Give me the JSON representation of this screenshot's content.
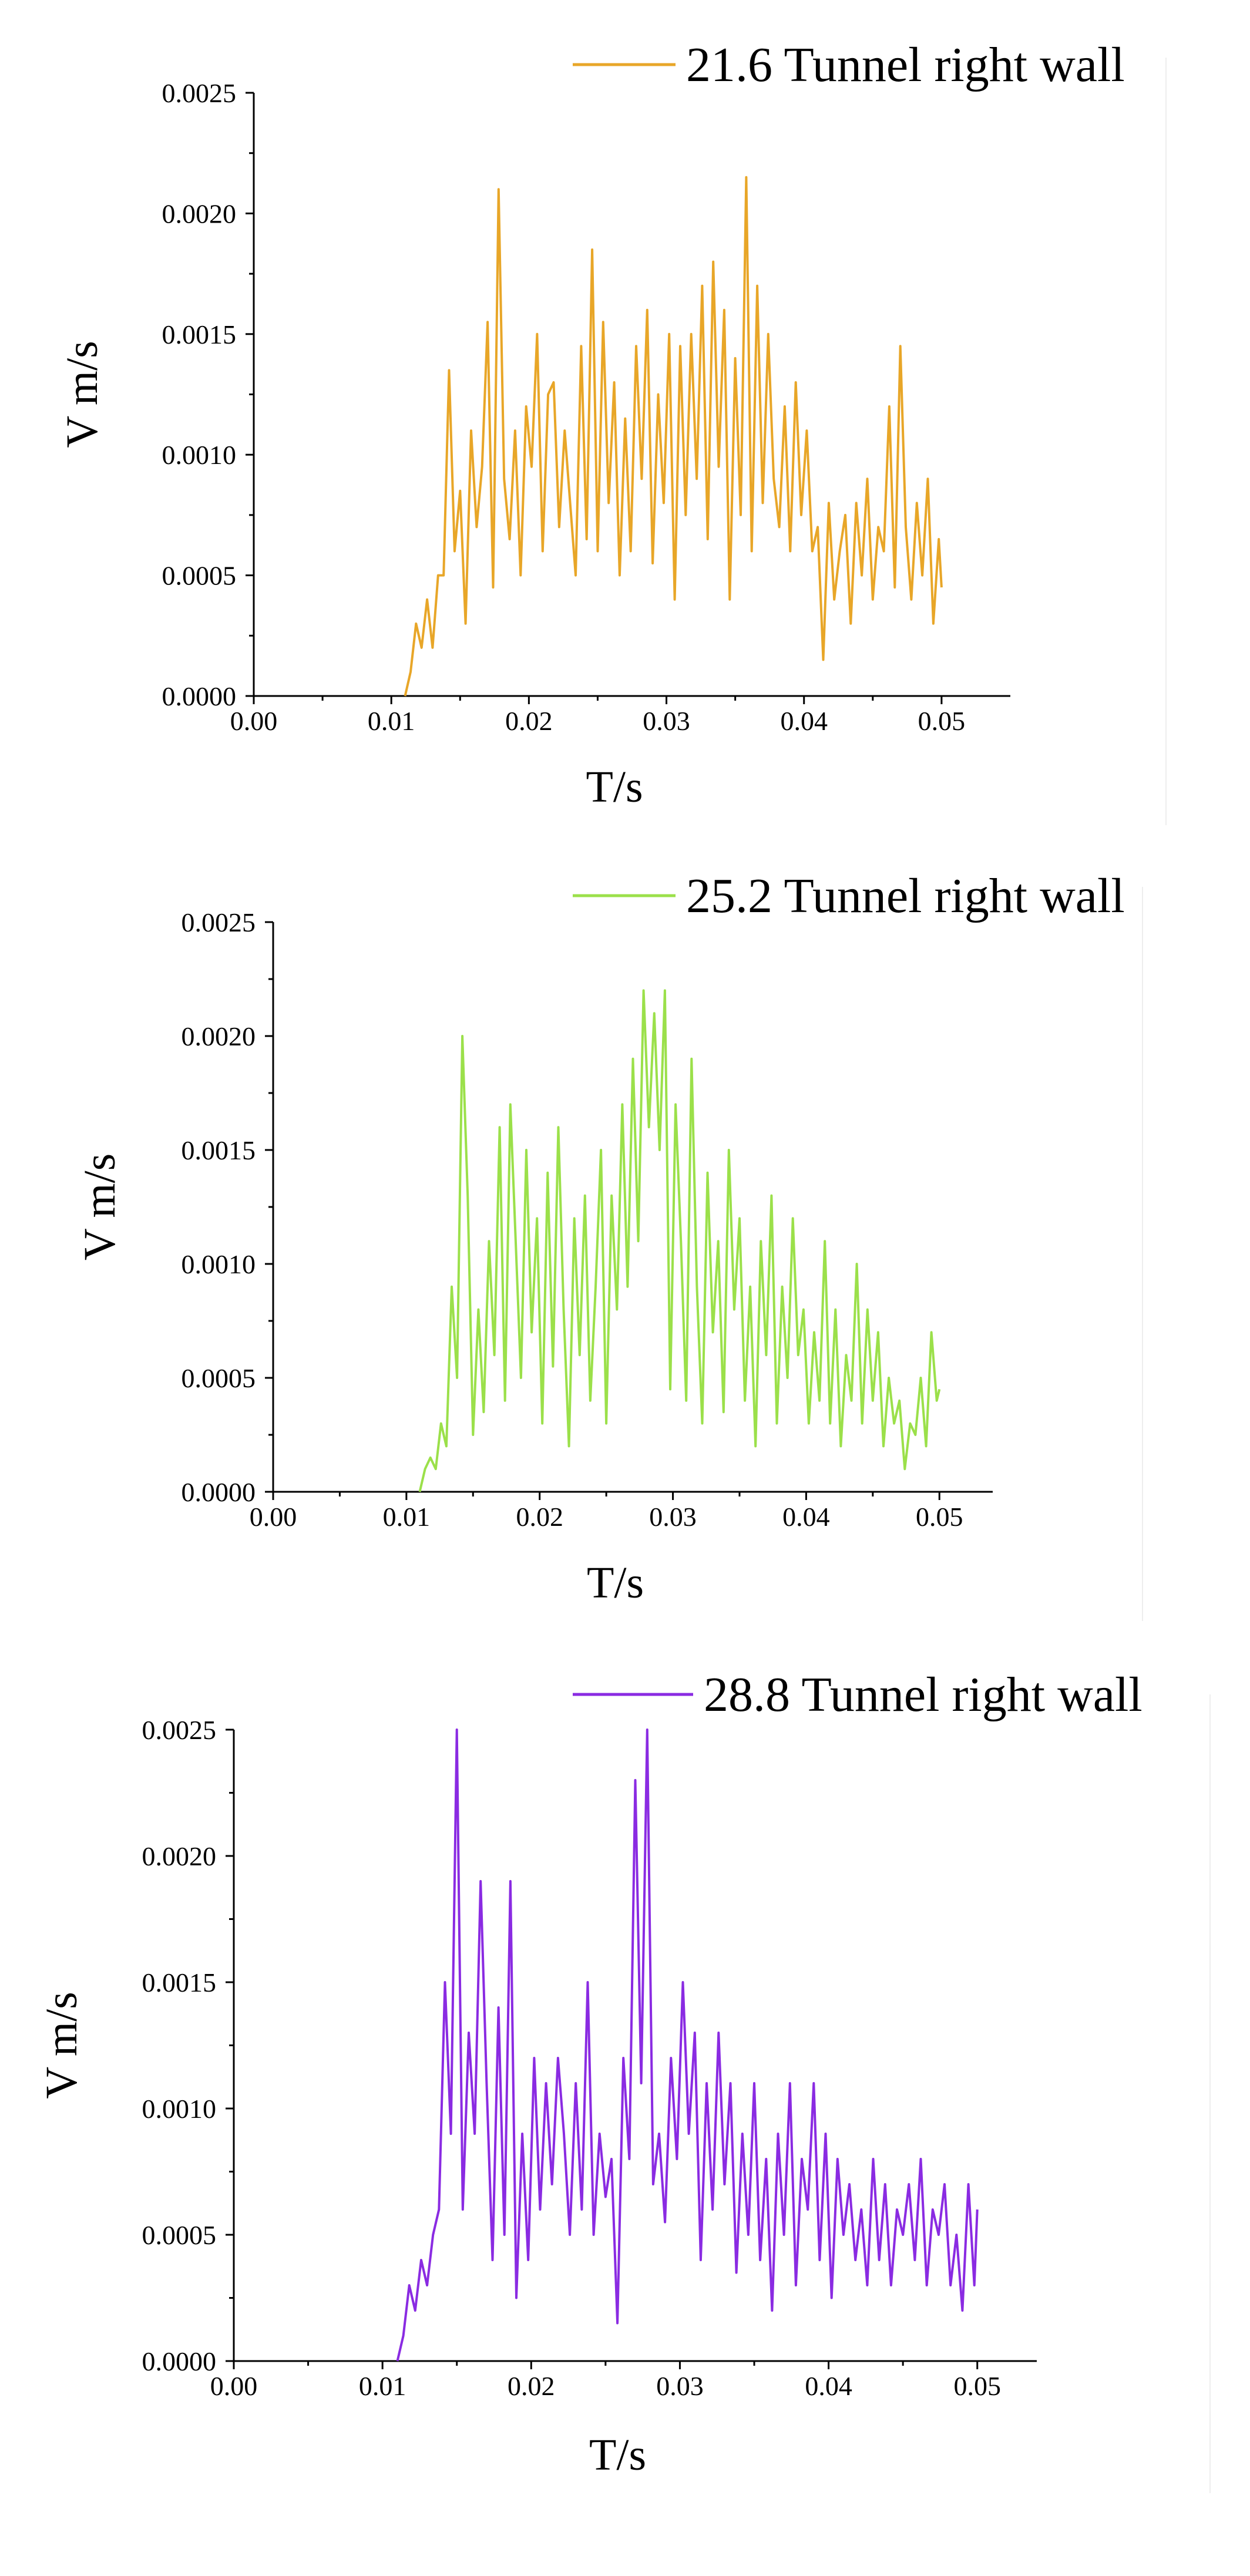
{
  "chart_data": [
    {
      "type": "line",
      "title": "",
      "xlabel": "T/s",
      "ylabel": "V m/s",
      "xlim": [
        0.0,
        0.055
      ],
      "ylim": [
        0.0,
        0.0025
      ],
      "xticks": [
        0.0,
        0.01,
        0.02,
        0.03,
        0.04,
        0.05
      ],
      "xtick_labels": [
        "0.00",
        "0.01",
        "0.02",
        "0.03",
        "0.04",
        "0.05"
      ],
      "yticks": [
        0.0,
        0.0005,
        0.001,
        0.0015,
        0.002,
        0.0025
      ],
      "ytick_labels": [
        "0.0000",
        "0.0005",
        "0.0010",
        "0.0015",
        "0.0020",
        "0.0025"
      ],
      "legend_position": "top-right",
      "series": [
        {
          "name": "21.6 Tunnel right wall",
          "color": "#E8A628",
          "x": [
            0.011,
            0.0114,
            0.0118,
            0.0122,
            0.0126,
            0.013,
            0.0134,
            0.0138,
            0.0142,
            0.0146,
            0.015,
            0.0154,
            0.0158,
            0.0162,
            0.0166,
            0.017,
            0.0174,
            0.0178,
            0.0182,
            0.0186,
            0.019,
            0.0194,
            0.0198,
            0.0202,
            0.0206,
            0.021,
            0.0214,
            0.0218,
            0.0222,
            0.0226,
            0.023,
            0.0234,
            0.0238,
            0.0242,
            0.0246,
            0.025,
            0.0254,
            0.0258,
            0.0262,
            0.0266,
            0.027,
            0.0274,
            0.0278,
            0.0282,
            0.0286,
            0.029,
            0.0294,
            0.0298,
            0.0302,
            0.0306,
            0.031,
            0.0314,
            0.0318,
            0.0322,
            0.0326,
            0.033,
            0.0334,
            0.0338,
            0.0342,
            0.0346,
            0.035,
            0.0354,
            0.0358,
            0.0362,
            0.0366,
            0.037,
            0.0374,
            0.0378,
            0.0382,
            0.0386,
            0.039,
            0.0394,
            0.0398,
            0.0402,
            0.0406,
            0.041,
            0.0414,
            0.0418,
            0.0422,
            0.0426,
            0.043,
            0.0434,
            0.0438,
            0.0442,
            0.0446,
            0.045,
            0.0454,
            0.0458,
            0.0462,
            0.0466,
            0.047,
            0.0474,
            0.0478,
            0.0482,
            0.0486,
            0.049,
            0.0494,
            0.0498,
            0.05
          ],
          "values": [
            0.0,
            0.0001,
            0.0003,
            0.0002,
            0.0004,
            0.0002,
            0.0005,
            0.0005,
            0.00135,
            0.0006,
            0.00085,
            0.0003,
            0.0011,
            0.0007,
            0.00095,
            0.00155,
            0.00045,
            0.0021,
            0.0009,
            0.00065,
            0.0011,
            0.0005,
            0.0012,
            0.00095,
            0.0015,
            0.0006,
            0.00125,
            0.0013,
            0.0007,
            0.0011,
            0.0008,
            0.0005,
            0.00145,
            0.00065,
            0.00185,
            0.0006,
            0.00155,
            0.0008,
            0.0013,
            0.0005,
            0.00115,
            0.0006,
            0.00145,
            0.0009,
            0.0016,
            0.00055,
            0.00125,
            0.0008,
            0.0015,
            0.0004,
            0.00145,
            0.00075,
            0.0015,
            0.0009,
            0.0017,
            0.00065,
            0.0018,
            0.00095,
            0.0016,
            0.0004,
            0.0014,
            0.00075,
            0.00215,
            0.0006,
            0.0017,
            0.0008,
            0.0015,
            0.0009,
            0.0007,
            0.0012,
            0.0006,
            0.0013,
            0.00075,
            0.0011,
            0.0006,
            0.0007,
            0.00015,
            0.0008,
            0.0004,
            0.0006,
            0.00075,
            0.0003,
            0.0008,
            0.0005,
            0.0009,
            0.0004,
            0.0007,
            0.0006,
            0.0012,
            0.00045,
            0.00145,
            0.0007,
            0.0004,
            0.0008,
            0.0005,
            0.0009,
            0.0003,
            0.00065,
            0.00045
          ]
        }
      ]
    },
    {
      "type": "line",
      "title": "",
      "xlabel": "T/s",
      "ylabel": "V m/s",
      "xlim": [
        0.0,
        0.054
      ],
      "ylim": [
        0.0,
        0.0025
      ],
      "xticks": [
        0.0,
        0.01,
        0.02,
        0.03,
        0.04,
        0.05
      ],
      "xtick_labels": [
        "0.00",
        "0.01",
        "0.02",
        "0.03",
        "0.04",
        "0.05"
      ],
      "yticks": [
        0.0,
        0.0005,
        0.001,
        0.0015,
        0.002,
        0.0025
      ],
      "ytick_labels": [
        "0.0000",
        "0.0005",
        "0.0010",
        "0.0015",
        "0.0020",
        "0.0025"
      ],
      "legend_position": "top-right",
      "series": [
        {
          "name": "25.2 Tunnel right wall",
          "color": "#9BE04A",
          "x": [
            0.011,
            0.0114,
            0.0118,
            0.0122,
            0.0126,
            0.013,
            0.0134,
            0.0138,
            0.0142,
            0.0146,
            0.015,
            0.0154,
            0.0158,
            0.0162,
            0.0166,
            0.017,
            0.0174,
            0.0178,
            0.0182,
            0.0186,
            0.019,
            0.0194,
            0.0198,
            0.0202,
            0.0206,
            0.021,
            0.0214,
            0.0218,
            0.0222,
            0.0226,
            0.023,
            0.0234,
            0.0238,
            0.0242,
            0.0246,
            0.025,
            0.0254,
            0.0258,
            0.0262,
            0.0266,
            0.027,
            0.0274,
            0.0278,
            0.0282,
            0.0286,
            0.029,
            0.0294,
            0.0298,
            0.0302,
            0.0306,
            0.031,
            0.0314,
            0.0318,
            0.0322,
            0.0326,
            0.033,
            0.0334,
            0.0338,
            0.0342,
            0.0346,
            0.035,
            0.0354,
            0.0358,
            0.0362,
            0.0366,
            0.037,
            0.0374,
            0.0378,
            0.0382,
            0.0386,
            0.039,
            0.0394,
            0.0398,
            0.0402,
            0.0406,
            0.041,
            0.0414,
            0.0418,
            0.0422,
            0.0426,
            0.043,
            0.0434,
            0.0438,
            0.0442,
            0.0446,
            0.045,
            0.0454,
            0.0458,
            0.0462,
            0.0466,
            0.047,
            0.0474,
            0.0478,
            0.0482,
            0.0486,
            0.049,
            0.0494,
            0.0498,
            0.05
          ],
          "values": [
            0.0,
            0.0001,
            0.00015,
            0.0001,
            0.0003,
            0.0002,
            0.0009,
            0.0005,
            0.002,
            0.0013,
            0.00025,
            0.0008,
            0.00035,
            0.0011,
            0.0006,
            0.0016,
            0.0004,
            0.0017,
            0.0011,
            0.0005,
            0.0015,
            0.0007,
            0.0012,
            0.0003,
            0.0014,
            0.00055,
            0.0016,
            0.0008,
            0.0002,
            0.0012,
            0.0006,
            0.0013,
            0.0004,
            0.0009,
            0.0015,
            0.0003,
            0.0013,
            0.0008,
            0.0017,
            0.0009,
            0.0019,
            0.0011,
            0.0022,
            0.0016,
            0.0021,
            0.0015,
            0.0022,
            0.00045,
            0.0017,
            0.0011,
            0.0004,
            0.0019,
            0.0009,
            0.0003,
            0.0014,
            0.0007,
            0.0011,
            0.00035,
            0.0015,
            0.0008,
            0.0012,
            0.0004,
            0.0009,
            0.0002,
            0.0011,
            0.0006,
            0.0013,
            0.0003,
            0.0009,
            0.0005,
            0.0012,
            0.0006,
            0.0008,
            0.0003,
            0.0007,
            0.0004,
            0.0011,
            0.0003,
            0.0008,
            0.0002,
            0.0006,
            0.0004,
            0.001,
            0.0003,
            0.0008,
            0.0004,
            0.0007,
            0.0002,
            0.0005,
            0.0003,
            0.0004,
            0.0001,
            0.0003,
            0.00025,
            0.0005,
            0.0002,
            0.0007,
            0.0004,
            0.00045
          ]
        }
      ]
    },
    {
      "type": "line",
      "title": "",
      "xlabel": "T/s",
      "ylabel": "V m/s",
      "xlim": [
        0.0,
        0.054
      ],
      "ylim": [
        0.0,
        0.0025
      ],
      "xticks": [
        0.0,
        0.01,
        0.02,
        0.03,
        0.04,
        0.05
      ],
      "xtick_labels": [
        "0.00",
        "0.01",
        "0.02",
        "0.03",
        "0.04",
        "0.05"
      ],
      "yticks": [
        0.0,
        0.0005,
        0.001,
        0.0015,
        0.002,
        0.0025
      ],
      "ytick_labels": [
        "0.0000",
        "0.0005",
        "0.0010",
        "0.0015",
        "0.0020",
        "0.0025"
      ],
      "legend_position": "top-right",
      "series": [
        {
          "name": "28.8 Tunnel right wall",
          "color": "#8A2BE2",
          "x": [
            0.011,
            0.0114,
            0.0118,
            0.0122,
            0.0126,
            0.013,
            0.0134,
            0.0138,
            0.0142,
            0.0146,
            0.015,
            0.0154,
            0.0158,
            0.0162,
            0.0166,
            0.017,
            0.0174,
            0.0178,
            0.0182,
            0.0186,
            0.019,
            0.0194,
            0.0198,
            0.0202,
            0.0206,
            0.021,
            0.0214,
            0.0218,
            0.0222,
            0.0226,
            0.023,
            0.0234,
            0.0238,
            0.0242,
            0.0246,
            0.025,
            0.0254,
            0.0258,
            0.0262,
            0.0266,
            0.027,
            0.0274,
            0.0278,
            0.0282,
            0.0286,
            0.029,
            0.0294,
            0.0298,
            0.0302,
            0.0306,
            0.031,
            0.0314,
            0.0318,
            0.0322,
            0.0326,
            0.033,
            0.0334,
            0.0338,
            0.0342,
            0.0346,
            0.035,
            0.0354,
            0.0358,
            0.0362,
            0.0366,
            0.037,
            0.0374,
            0.0378,
            0.0382,
            0.0386,
            0.039,
            0.0394,
            0.0398,
            0.0402,
            0.0406,
            0.041,
            0.0414,
            0.0418,
            0.0422,
            0.0426,
            0.043,
            0.0434,
            0.0438,
            0.0442,
            0.0446,
            0.045,
            0.0454,
            0.0458,
            0.0462,
            0.0466,
            0.047,
            0.0474,
            0.0478,
            0.0482,
            0.0486,
            0.049,
            0.0494,
            0.0498,
            0.05
          ],
          "values": [
            0.0,
            0.0001,
            0.0003,
            0.0002,
            0.0004,
            0.0003,
            0.0005,
            0.0006,
            0.0015,
            0.0009,
            0.0025,
            0.0006,
            0.0013,
            0.0009,
            0.0019,
            0.0011,
            0.0004,
            0.0014,
            0.0005,
            0.0019,
            0.00025,
            0.0009,
            0.0004,
            0.0012,
            0.0006,
            0.0011,
            0.0007,
            0.0012,
            0.0009,
            0.0005,
            0.0011,
            0.0006,
            0.0015,
            0.0005,
            0.0009,
            0.00065,
            0.0008,
            0.00015,
            0.0012,
            0.0008,
            0.0023,
            0.0011,
            0.0025,
            0.0007,
            0.0009,
            0.00055,
            0.0012,
            0.0008,
            0.0015,
            0.0009,
            0.0013,
            0.0004,
            0.0011,
            0.0006,
            0.0013,
            0.0007,
            0.0011,
            0.00035,
            0.0009,
            0.0005,
            0.0011,
            0.0004,
            0.0008,
            0.0002,
            0.0009,
            0.0005,
            0.0011,
            0.0003,
            0.0008,
            0.0006,
            0.0011,
            0.0004,
            0.0009,
            0.00025,
            0.0008,
            0.0005,
            0.0007,
            0.0004,
            0.0006,
            0.0003,
            0.0008,
            0.0004,
            0.0007,
            0.0003,
            0.0006,
            0.0005,
            0.0007,
            0.0004,
            0.0008,
            0.0003,
            0.0006,
            0.0005,
            0.0007,
            0.0003,
            0.0005,
            0.0002,
            0.0007,
            0.0003,
            0.0006
          ]
        }
      ]
    }
  ]
}
